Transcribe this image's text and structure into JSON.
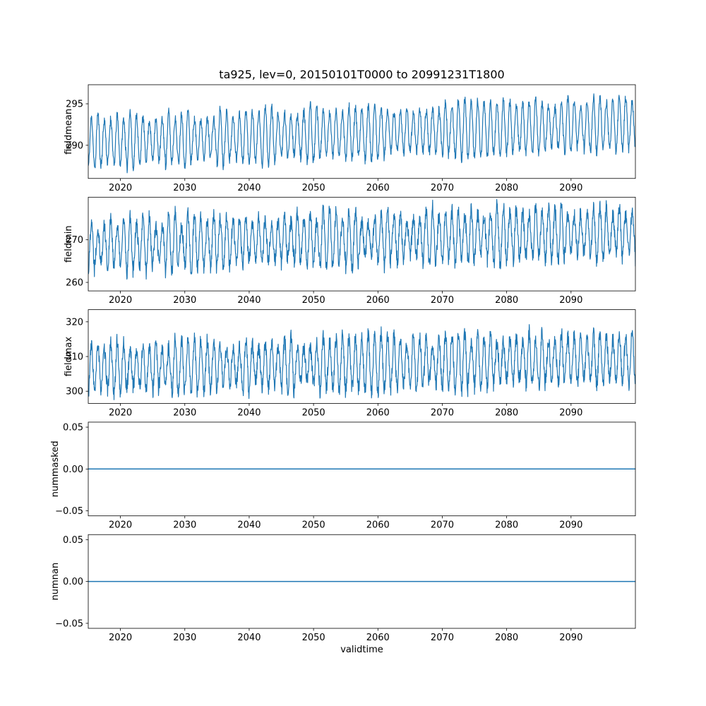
{
  "figure": {
    "title": "ta925, lev=0, 20150101T0000 to 20991231T1800",
    "background": "#ffffff"
  },
  "chart_data": {
    "type": "line",
    "title": "ta925, lev=0, 20150101T0000 to 20991231T1800",
    "xlabel": "validtime",
    "line_color": "#1f77b4",
    "grid": false,
    "legend": "none",
    "x_axis": {
      "xlim": [
        2015,
        2100
      ],
      "xticks": [
        2020,
        2030,
        2040,
        2050,
        2060,
        2070,
        2080,
        2090
      ],
      "xticklabels": [
        "2020",
        "2030",
        "2040",
        "2050",
        "2060",
        "2070",
        "2080",
        "2090"
      ]
    },
    "subplots": [
      {
        "name": "fieldmean",
        "ylabel": "fieldmean",
        "ylim": [
          286.0,
          297.3
        ],
        "yticks": [
          290,
          295
        ],
        "yticklabels": [
          "290",
          "295"
        ],
        "series": {
          "kind": "seasonal",
          "mean_start": 290.4,
          "mean_end": 292.6,
          "amplitude": 2.9,
          "amp_jitter": 0.25,
          "noise": 0.55,
          "seed": 11,
          "description": "dense annual oscillation, mean rising from ~290.4 (2015) to ~292.6 (2099), envelope ~287 to ~296.5"
        }
      },
      {
        "name": "fieldmin",
        "ylabel": "fieldmin",
        "ylim": [
          258.0,
          280.0
        ],
        "yticks": [
          260,
          270
        ],
        "yticklabels": [
          "260",
          "270"
        ],
        "series": {
          "kind": "seasonal",
          "mean_start": 268.8,
          "mean_end": 271.8,
          "amplitude": 5.5,
          "amp_jitter": 0.3,
          "noise": 1.8,
          "seed": 22,
          "description": "dense annual oscillation, mean rising from ~268.8 to ~271.8, envelope ~259 to ~279"
        }
      },
      {
        "name": "fieldmax",
        "ylabel": "fieldmax",
        "ylim": [
          296.5,
          323.5
        ],
        "yticks": [
          300,
          310,
          320
        ],
        "yticklabels": [
          "300",
          "310",
          "320"
        ],
        "series": {
          "kind": "seasonal",
          "mean_start": 306.5,
          "mean_end": 309.5,
          "amplitude": 6.5,
          "amp_jitter": 0.3,
          "noise": 2.2,
          "seed": 33,
          "description": "dense annual oscillation, mean rising from ~306.5 to ~309.5, envelope ~299 to ~322"
        }
      },
      {
        "name": "nummasked",
        "ylabel": "nummasked",
        "ylim": [
          -0.056,
          0.056
        ],
        "yticks": [
          -0.05,
          0,
          0.05
        ],
        "yticklabels": [
          "−0.05",
          "0.00",
          "0.05"
        ],
        "series": {
          "kind": "constant",
          "value": 0,
          "description": "constant 0 across full time range"
        }
      },
      {
        "name": "numnan",
        "ylabel": "numnan",
        "ylim": [
          -0.056,
          0.056
        ],
        "yticks": [
          -0.05,
          0,
          0.05
        ],
        "yticklabels": [
          "−0.05",
          "0.00",
          "0.05"
        ],
        "xlabel": "validtime",
        "series": {
          "kind": "constant",
          "value": 0,
          "description": "constant 0 across full time range"
        }
      }
    ]
  }
}
